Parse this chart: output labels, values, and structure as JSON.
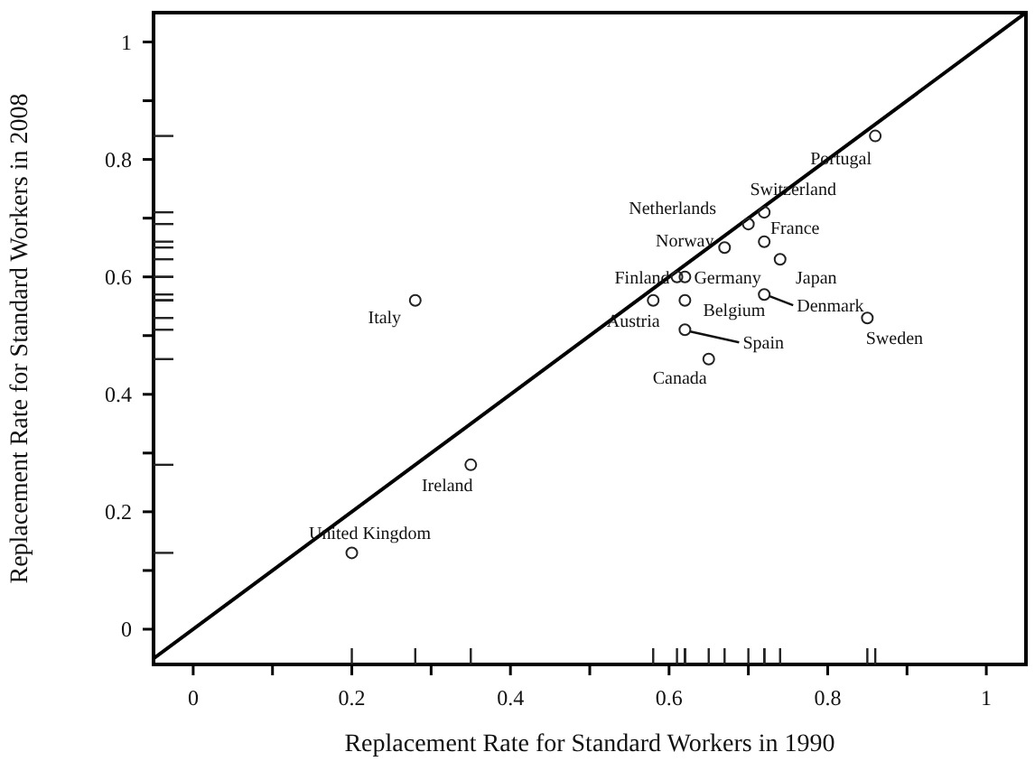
{
  "chart_data": {
    "type": "scatter",
    "xlabel": "Replacement Rate for Standard Workers in 1990",
    "ylabel": "Replacement Rate for Standard Workers in 2008",
    "xlim": [
      -0.05,
      1.05
    ],
    "ylim": [
      -0.06,
      1.05
    ],
    "xticks": [
      0,
      {
        "value": 0.1,
        "label": null
      },
      0.2,
      {
        "value": 0.3,
        "label": null
      },
      0.4,
      {
        "value": 0.5,
        "label": null
      },
      0.6,
      {
        "value": 0.7,
        "label": null
      },
      0.8,
      {
        "value": 0.9,
        "label": null
      },
      1
    ],
    "yticks": [
      0,
      {
        "value": 0.1,
        "label": null
      },
      0.2,
      {
        "value": 0.3,
        "label": null
      },
      0.4,
      {
        "value": 0.5,
        "label": null
      },
      0.6,
      {
        "value": 0.7,
        "label": null
      },
      0.8,
      {
        "value": 0.9,
        "label": null
      },
      1
    ],
    "grid": false,
    "series": [
      {
        "marker": "circle",
        "color": "#222222",
        "x": [
          0.86,
          0.72,
          0.7,
          0.72,
          0.67,
          0.74,
          0.61,
          0.62,
          0.58,
          0.62,
          0.72,
          0.85,
          0.62,
          0.65,
          0.28,
          0.35,
          0.2
        ],
        "values": [
          0.84,
          0.71,
          0.69,
          0.66,
          0.65,
          0.63,
          0.6,
          0.6,
          0.56,
          0.56,
          0.57,
          0.53,
          0.51,
          0.46,
          0.56,
          0.28,
          0.13
        ]
      },
      {
        "type": "line",
        "color": "#000000",
        "x": [
          -0.05,
          1.05
        ],
        "values": [
          -0.05,
          1.05
        ]
      }
    ],
    "annotations": [
      {
        "text": "Portugal",
        "x": 0.86,
        "y": 0.84
      },
      {
        "text": "Switzerland",
        "x": 0.72,
        "y": 0.71
      },
      {
        "text": "Netherlands",
        "x": 0.7,
        "y": 0.69
      },
      {
        "text": "France",
        "x": 0.72,
        "y": 0.66
      },
      {
        "text": "Norway",
        "x": 0.67,
        "y": 0.65
      },
      {
        "text": "Japan",
        "x": 0.74,
        "y": 0.63
      },
      {
        "text": "Finland",
        "x": 0.61,
        "y": 0.6
      },
      {
        "text": "Germany",
        "x": 0.62,
        "y": 0.6
      },
      {
        "text": "Austria",
        "x": 0.58,
        "y": 0.56
      },
      {
        "text": "Belgium",
        "x": 0.62,
        "y": 0.56
      },
      {
        "text": "Denmark",
        "x": 0.72,
        "y": 0.57
      },
      {
        "text": "Sweden",
        "x": 0.85,
        "y": 0.53
      },
      {
        "text": "Spain",
        "x": 0.62,
        "y": 0.51
      },
      {
        "text": "Canada",
        "x": 0.65,
        "y": 0.46
      },
      {
        "text": "Italy",
        "x": 0.28,
        "y": 0.56
      },
      {
        "text": "Ireland",
        "x": 0.35,
        "y": 0.28
      },
      {
        "text": "United Kingdom",
        "x": 0.2,
        "y": 0.13
      }
    ]
  }
}
